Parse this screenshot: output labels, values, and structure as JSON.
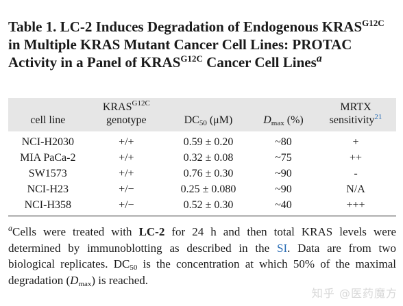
{
  "title": {
    "part1": "Table 1. LC-2 Induces Degradation of Endogenous KRAS",
    "sup1": "G12C",
    "part2": " in Multiple KRAS Mutant Cancer Cell Lines: PROTAC Activity in a Panel of KRAS",
    "sup2": "G12C",
    "part3": " Cancer Cell Lines",
    "note_mark": "a"
  },
  "table": {
    "headers": {
      "cell_line": "cell line",
      "genotype_main": "KRAS",
      "genotype_sup": "G12C",
      "genotype_sub": "genotype",
      "dc50_main": "DC",
      "dc50_sub": "50",
      "dc50_unit": " (μM)",
      "dmax_main": "D",
      "dmax_sub": "max",
      "dmax_unit": " (%)",
      "mrtx_line1": "MRTX",
      "mrtx_line2": "sensitivity",
      "mrtx_ref": "21"
    },
    "rows": [
      {
        "cell_line": "NCI-H2030",
        "genotype": "+/+",
        "dc50": "0.59 ± 0.20",
        "dmax": "~80",
        "mrtx": "+"
      },
      {
        "cell_line": "MIA PaCa-2",
        "genotype": "+/+",
        "dc50": "0.32 ± 0.08",
        "dmax": "~75",
        "mrtx": "++"
      },
      {
        "cell_line": "SW1573",
        "genotype": "+/+",
        "dc50": "0.76 ± 0.30",
        "dmax": "~90",
        "mrtx": "-"
      },
      {
        "cell_line": "NCI-H23",
        "genotype": "+/−",
        "dc50": "0.25 ± 0.080",
        "dmax": "~90",
        "mrtx": "N/A"
      },
      {
        "cell_line": "NCI-H358",
        "genotype": "+/−",
        "dc50": "0.52 ± 0.30",
        "dmax": "~40",
        "mrtx": "+++"
      }
    ]
  },
  "footnote": {
    "mark": "a",
    "t1": "Cells were treated with ",
    "compound": "LC-2",
    "t2": " for 24 h and then total KRAS levels were determined by immunoblotting as described in the ",
    "link": "SI",
    "t3": ". Data are from two biological replicates. DC",
    "sub1": "50",
    "t4": " is the concentration at which 50% of the maximal degradation (",
    "dmax_it": "D",
    "dmax_sub": "max",
    "t5": ") is reached."
  },
  "watermark": "知乎 @医药魔方"
}
